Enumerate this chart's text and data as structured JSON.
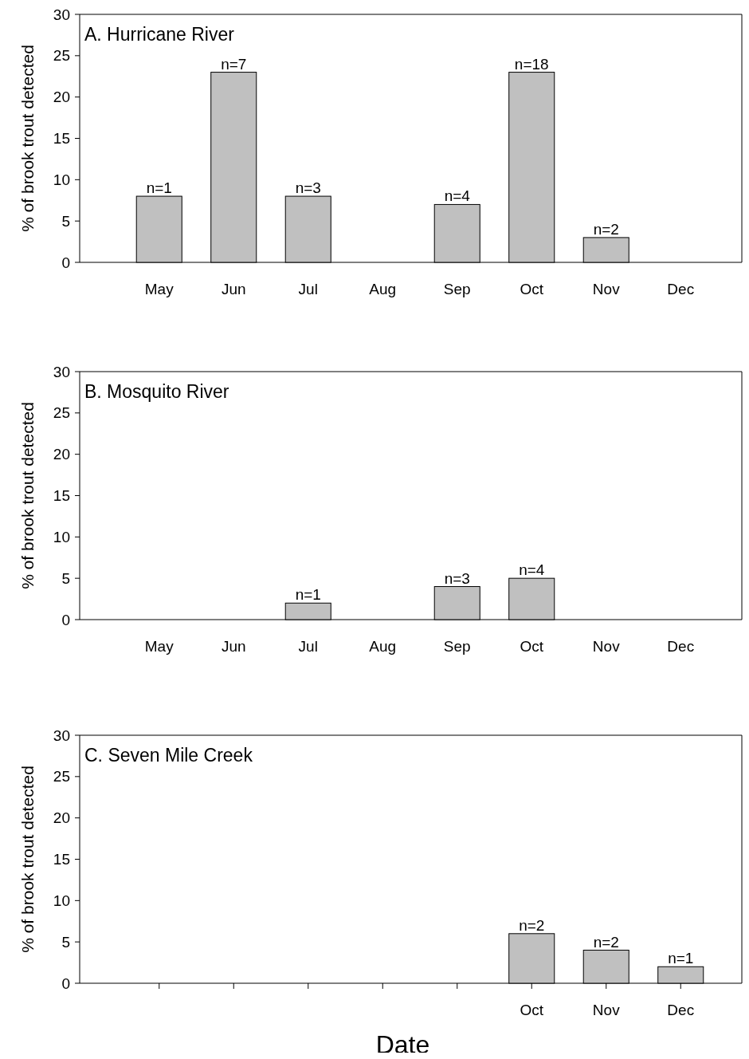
{
  "chart_data": [
    {
      "type": "bar",
      "title": "A.  Hurricane River",
      "ylabel": "% of brook trout detected",
      "categories": [
        "May",
        "Jun",
        "Jul",
        "Aug",
        "Sep",
        "Oct",
        "Nov",
        "Dec"
      ],
      "values": [
        8,
        23,
        8,
        null,
        7,
        23,
        3,
        null
      ],
      "color": "#c0c0c0",
      "ylim": [
        0,
        30
      ],
      "yticks": [
        0,
        5,
        10,
        15,
        20,
        25,
        30
      ],
      "annotations": [
        {
          "text": "n=1",
          "x": "May",
          "y": 8
        },
        {
          "text": "n=7",
          "x": "Jun",
          "y": 23
        },
        {
          "text": "n=3",
          "x": "Jul",
          "y": 8
        },
        {
          "text": "n=4",
          "x": "Sep",
          "y": 7
        },
        {
          "text": "n=18",
          "x": "Oct",
          "y": 23
        },
        {
          "text": "n=2",
          "x": "Nov",
          "y": 3
        }
      ]
    },
    {
      "type": "bar",
      "title": "B.  Mosquito River",
      "ylabel": "% of brook trout detected",
      "categories": [
        "May",
        "Jun",
        "Jul",
        "Aug",
        "Sep",
        "Oct",
        "Nov",
        "Dec"
      ],
      "values": [
        null,
        null,
        2,
        null,
        4,
        5,
        null,
        null
      ],
      "color": "#c0c0c0",
      "ylim": [
        0,
        30
      ],
      "yticks": [
        0,
        5,
        10,
        15,
        20,
        25,
        30
      ],
      "annotations": [
        {
          "text": "n=1",
          "x": "Jul",
          "y": 2
        },
        {
          "text": "n=3",
          "x": "Sep",
          "y": 4
        },
        {
          "text": "n=4",
          "x": "Oct",
          "y": 5
        }
      ]
    },
    {
      "type": "bar",
      "title": "C.  Seven Mile Creek",
      "ylabel": "% of brook trout detected",
      "xlabel": "Date",
      "categories": [
        null,
        null,
        null,
        null,
        null,
        "Oct",
        "Nov",
        "Dec"
      ],
      "values": [
        null,
        null,
        null,
        null,
        null,
        6,
        4,
        2
      ],
      "color": "#c0c0c0",
      "ylim": [
        0,
        30
      ],
      "yticks": [
        0,
        5,
        10,
        15,
        20,
        25,
        30
      ],
      "annotations": [
        {
          "text": "n=2",
          "x": "Oct",
          "y": 6
        },
        {
          "text": "n=2",
          "x": "Nov",
          "y": 4
        },
        {
          "text": "n=1",
          "x": "Dec",
          "y": 2
        }
      ]
    }
  ]
}
